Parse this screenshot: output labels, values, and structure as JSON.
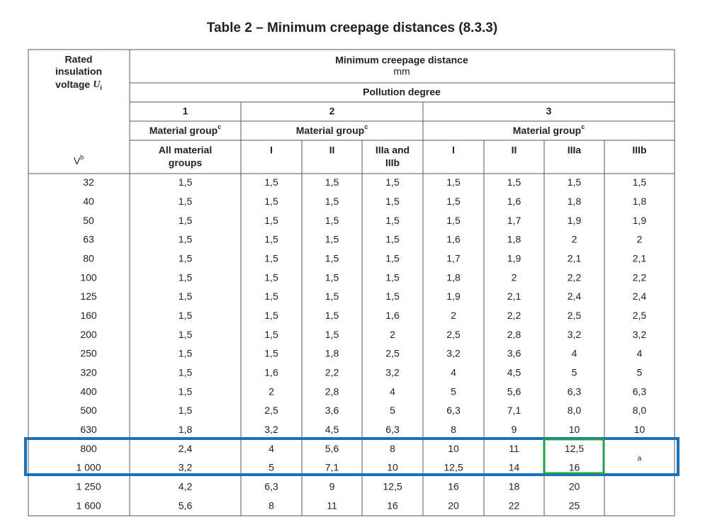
{
  "title": "Table 2 – Minimum creepage distances (8.3.3)",
  "header": {
    "rated_voltage": {
      "lines": [
        "Rated",
        "insulation",
        "voltage"
      ],
      "symbol": "U",
      "subscript": "i"
    },
    "unit": {
      "text": "V",
      "footnote": "b"
    },
    "distance": {
      "title": "Minimum creepage distance",
      "unit": "mm"
    },
    "pollution_degree": "Pollution degree",
    "degrees": [
      {
        "label": "1",
        "material_group": "Material group",
        "footnote": "c"
      },
      {
        "label": "2",
        "material_group": "Material group",
        "footnote": "c"
      },
      {
        "label": "3",
        "material_group": "Material group",
        "footnote": "c"
      }
    ],
    "material_groups": [
      [
        "All material",
        "groups"
      ],
      [
        "I"
      ],
      [
        "II"
      ],
      [
        "IIIa and",
        "IIIb"
      ],
      [
        "I"
      ],
      [
        "II"
      ],
      [
        "IIIa"
      ],
      [
        "IIIb"
      ]
    ]
  },
  "table": {
    "rows": [
      [
        "32",
        "1,5",
        "1,5",
        "1,5",
        "1,5",
        "1,5",
        "1,5",
        "1,5",
        "1,5"
      ],
      [
        "40",
        "1,5",
        "1,5",
        "1,5",
        "1,5",
        "1,5",
        "1,6",
        "1,8",
        "1,8"
      ],
      [
        "50",
        "1,5",
        "1,5",
        "1,5",
        "1,5",
        "1,5",
        "1,7",
        "1,9",
        "1,9"
      ],
      [
        "63",
        "1,5",
        "1,5",
        "1,5",
        "1,5",
        "1,6",
        "1,8",
        "2",
        "2"
      ],
      [
        "80",
        "1,5",
        "1,5",
        "1,5",
        "1,5",
        "1,7",
        "1,9",
        "2,1",
        "2,1"
      ],
      [
        "100",
        "1,5",
        "1,5",
        "1,5",
        "1,5",
        "1,8",
        "2",
        "2,2",
        "2,2"
      ],
      [
        "125",
        "1,5",
        "1,5",
        "1,5",
        "1,5",
        "1,9",
        "2,1",
        "2,4",
        "2,4"
      ],
      [
        "160",
        "1,5",
        "1,5",
        "1,5",
        "1,6",
        "2",
        "2,2",
        "2,5",
        "2,5"
      ],
      [
        "200",
        "1,5",
        "1,5",
        "1,5",
        "2",
        "2,5",
        "2,8",
        "3,2",
        "3,2"
      ],
      [
        "250",
        "1,5",
        "1,5",
        "1,8",
        "2,5",
        "3,2",
        "3,6",
        "4",
        "4"
      ],
      [
        "320",
        "1,5",
        "1,6",
        "2,2",
        "3,2",
        "4",
        "4,5",
        "5",
        "5"
      ],
      [
        "400",
        "1,5",
        "2",
        "2,8",
        "4",
        "5",
        "5,6",
        "6,3",
        "6,3"
      ],
      [
        "500",
        "1,5",
        "2,5",
        "3,6",
        "5",
        "6,3",
        "7,1",
        "8,0",
        "8,0"
      ],
      [
        "630",
        "1,8",
        "3,2",
        "4,5",
        "6,3",
        "8",
        "9",
        "10",
        "10"
      ],
      [
        "800",
        "2,4",
        "4",
        "5,6",
        "8",
        "10",
        "11",
        "12,5"
      ],
      [
        "1 000",
        "3,2",
        "5",
        "7,1",
        "10",
        "12,5",
        "14",
        "16"
      ],
      [
        "1 250",
        "4,2",
        "6,3",
        "9",
        "12,5",
        "16",
        "18",
        "20"
      ],
      [
        "1 600",
        "5,6",
        "8",
        "11",
        "16",
        "20",
        "22",
        "25"
      ]
    ],
    "merged_note": "a"
  }
}
